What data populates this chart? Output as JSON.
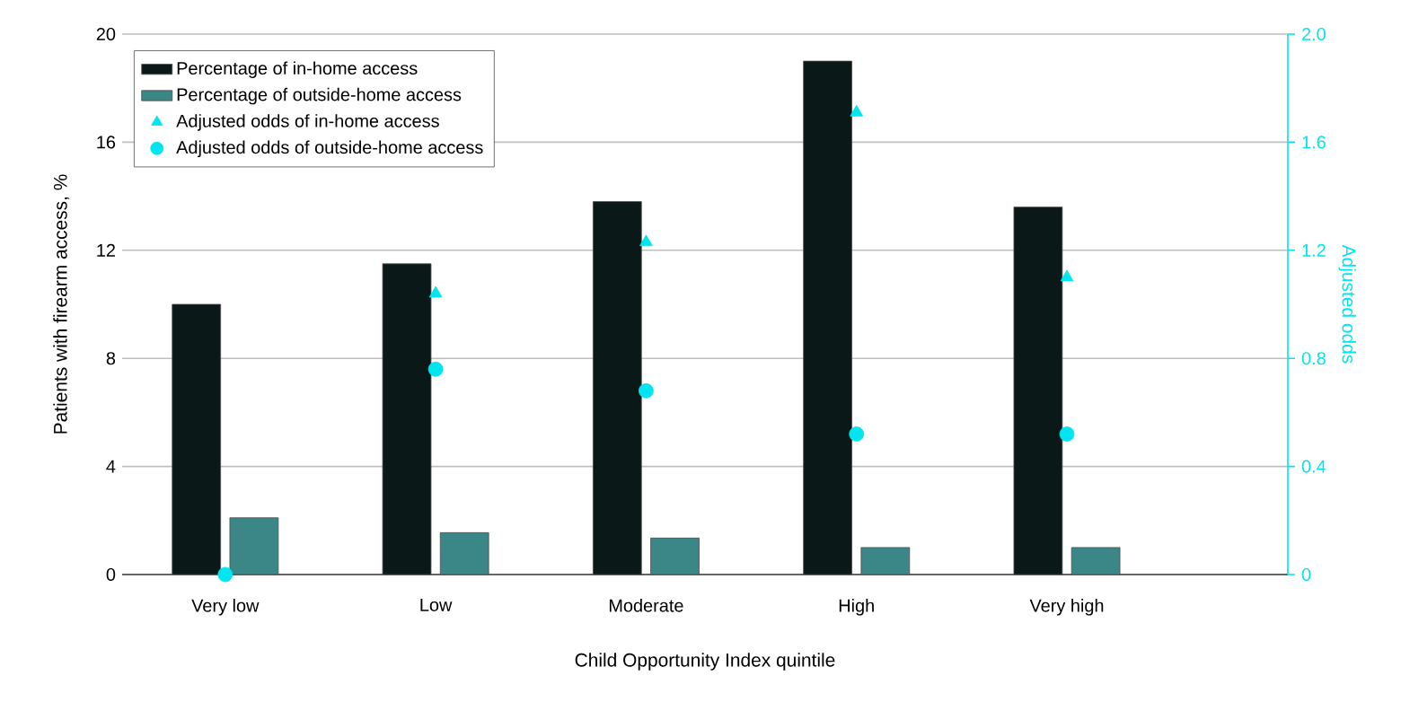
{
  "chart_data": {
    "type": "bar",
    "categories": [
      "Very low",
      "Low",
      "Moderate",
      "High",
      "Very high"
    ],
    "xlabel": "Child Opportunity Index quintile",
    "ylabel": "Patients with firearm access, %",
    "y2label": "Adjusted odds",
    "ylim": [
      0,
      20
    ],
    "yticks": [
      0,
      4,
      8,
      12,
      16,
      20
    ],
    "y2lim": [
      0,
      2
    ],
    "y2ticks": [
      0,
      0.4,
      0.8,
      1.2,
      1.6,
      {
        "value": 2,
        "label": "2.0"
      }
    ],
    "grid": "y",
    "legend": "top left",
    "series": [
      {
        "name": "Percentage of in-home access",
        "color": "#0a1918",
        "values": [
          10.0,
          11.5,
          13.8,
          19.0,
          13.6
        ]
      },
      {
        "name": "Percentage of outside-home access",
        "color": "#3b8686",
        "values": [
          2.1,
          1.55,
          1.35,
          1.0,
          1.0
        ]
      },
      {
        "name": "Adjusted odds of in-home access",
        "type": "scatter",
        "axis": "y2",
        "marker": "triangle",
        "color": "#00e5ef",
        "values": [
          null,
          1.04,
          1.23,
          1.71,
          1.1
        ]
      },
      {
        "name": "Adjusted odds of outside-home access",
        "type": "scatter",
        "axis": "y2",
        "marker": "circle",
        "color": "#00e5ef",
        "values": [
          0,
          0.76,
          0.68,
          0.52,
          0.52
        ]
      }
    ]
  }
}
